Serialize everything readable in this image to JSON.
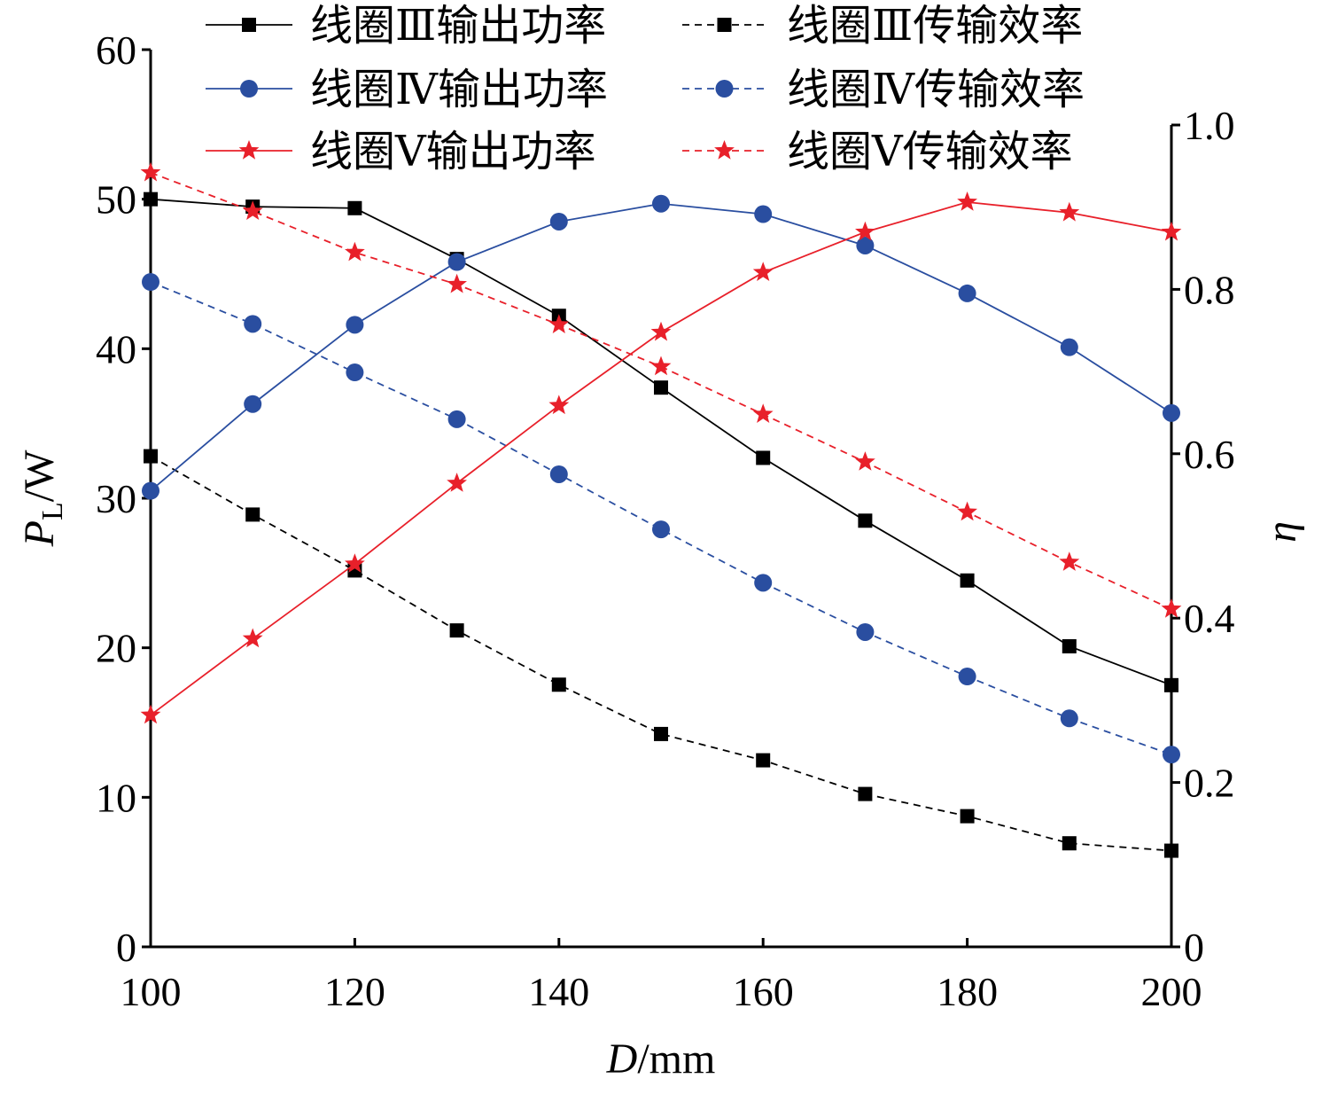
{
  "chart_data": {
    "type": "line",
    "title": "",
    "xlabel": "D/mm",
    "ylabel_left": "P_L/W",
    "ylabel_right": "η",
    "xlim": [
      100,
      200
    ],
    "ylim_left": [
      0,
      60
    ],
    "ylim_right": [
      0,
      1.0
    ],
    "x_ticks": [
      "100",
      "120",
      "140",
      "160",
      "180",
      "200"
    ],
    "y_left_ticks": [
      "0",
      "10",
      "20",
      "30",
      "40",
      "50",
      "60"
    ],
    "y_right_ticks": [
      "0",
      "0.2",
      "0.4",
      "0.6",
      "0.8",
      "1.0"
    ],
    "grid": false,
    "legend_position": "top",
    "x": [
      100,
      110,
      120,
      130,
      140,
      150,
      160,
      170,
      180,
      190,
      200
    ],
    "series": [
      {
        "name": "线圈Ⅲ输出功率",
        "axis": "left",
        "color": "#000000",
        "dash": false,
        "marker": "square",
        "values": [
          50.0,
          49.5,
          49.4,
          46.0,
          42.2,
          37.4,
          32.7,
          28.5,
          24.5,
          20.1,
          17.5
        ]
      },
      {
        "name": "线圈Ⅲ传输效率",
        "axis": "right",
        "color": "#000000",
        "dash": true,
        "marker": "square",
        "values": [
          0.597,
          0.526,
          0.458,
          0.385,
          0.319,
          0.259,
          0.227,
          0.186,
          0.159,
          0.126,
          0.117
        ]
      },
      {
        "name": "线圈Ⅳ输出功率",
        "axis": "left",
        "color": "#2a4ea0",
        "dash": false,
        "marker": "circle",
        "values": [
          30.5,
          36.3,
          41.6,
          45.8,
          48.5,
          49.7,
          49.0,
          46.9,
          43.7,
          40.1,
          35.7
        ]
      },
      {
        "name": "线圈Ⅳ传输效率",
        "axis": "right",
        "color": "#2a4ea0",
        "dash": true,
        "marker": "circle",
        "values": [
          0.809,
          0.758,
          0.699,
          0.642,
          0.575,
          0.508,
          0.443,
          0.383,
          0.329,
          0.278,
          0.234
        ]
      },
      {
        "name": "线圈Ⅴ输出功率",
        "axis": "left",
        "color": "#e8202a",
        "dash": false,
        "marker": "star",
        "values": [
          15.5,
          20.6,
          25.6,
          31.0,
          36.2,
          41.1,
          45.1,
          47.8,
          49.8,
          49.1,
          47.8
        ]
      },
      {
        "name": "线圈Ⅴ传输效率",
        "axis": "right",
        "color": "#e8202a",
        "dash": true,
        "marker": "star",
        "values": [
          0.942,
          0.895,
          0.845,
          0.806,
          0.757,
          0.706,
          0.648,
          0.59,
          0.529,
          0.468,
          0.411
        ]
      }
    ]
  }
}
